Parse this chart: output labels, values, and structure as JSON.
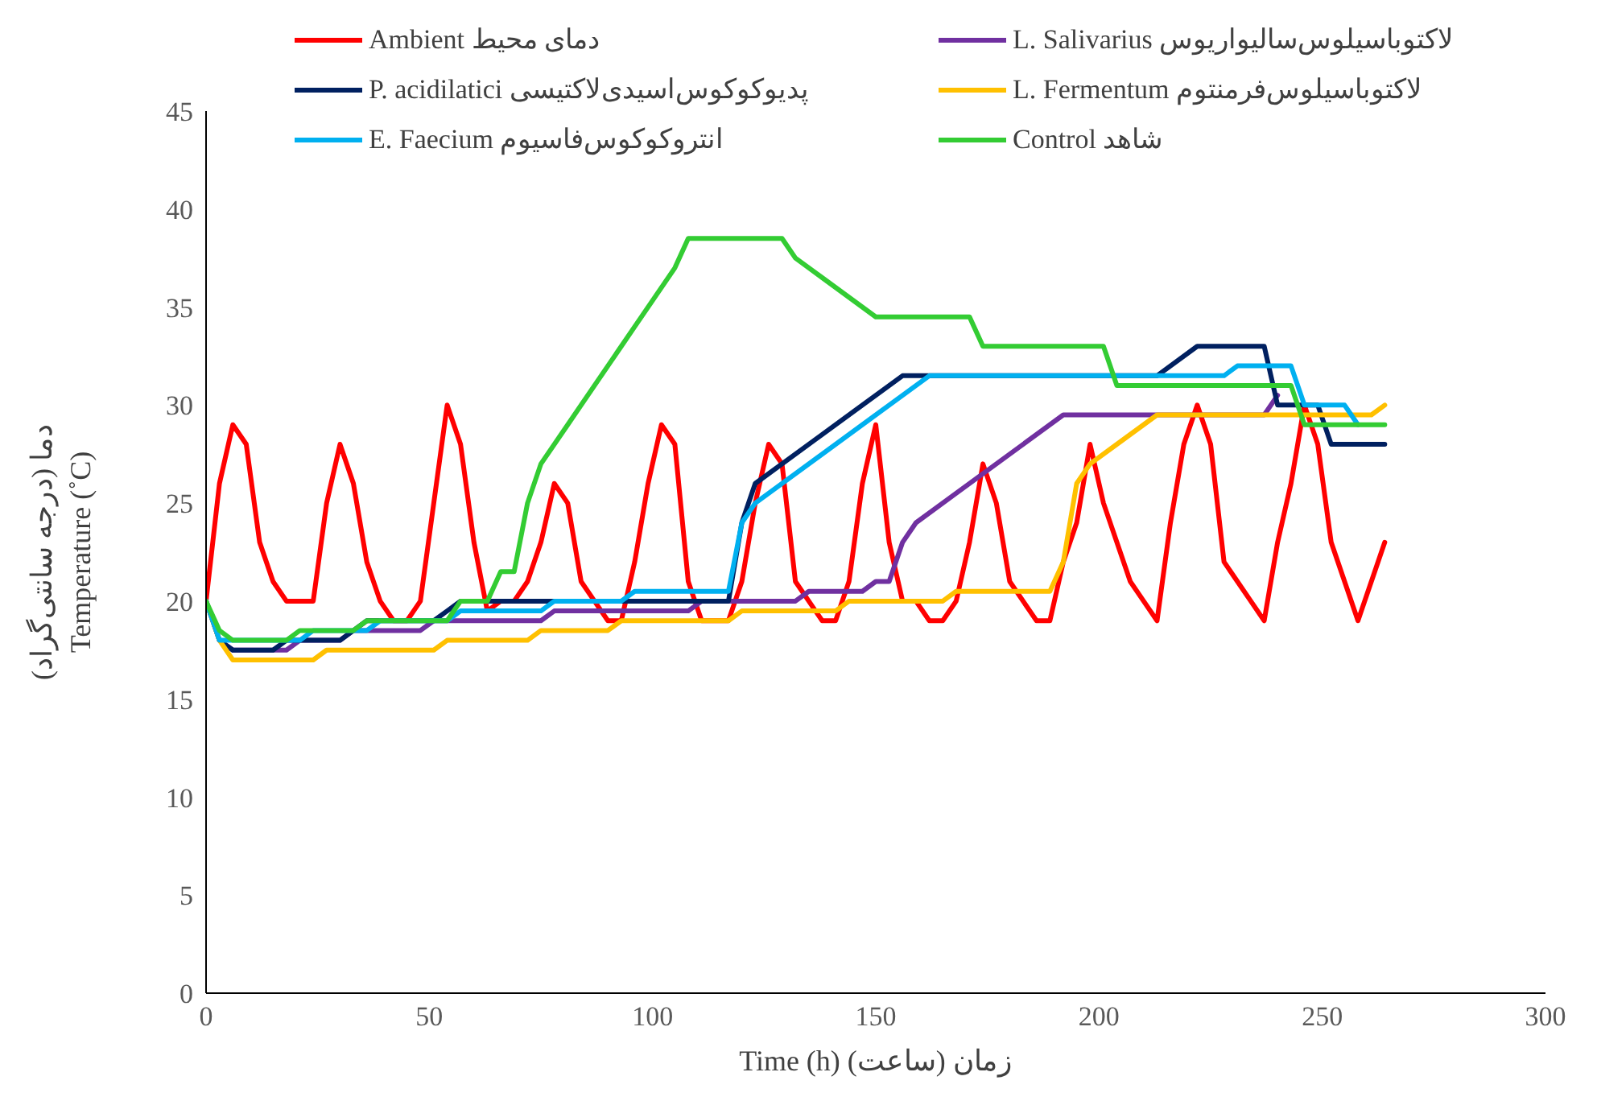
{
  "chart_data": {
    "type": "line",
    "xlabel": "Time (h) زمان (ساعت)",
    "ylabel": "دما (درجه سانتی‌گراد)\nTemperature (˚C)",
    "xlim": [
      0,
      300
    ],
    "xticks": [
      0,
      50,
      100,
      150,
      200,
      250,
      300
    ],
    "ylim": [
      0,
      45
    ],
    "yticks": [
      0,
      5,
      10,
      15,
      20,
      25,
      30,
      35,
      40,
      45
    ],
    "legend": "top",
    "marker": "none",
    "line_style": "solid",
    "series": [
      {
        "name": "Ambient دمای محیط",
        "color": "#ff0000",
        "x": [
          0,
          3,
          6,
          9,
          12,
          15,
          18,
          21,
          24,
          27,
          30,
          33,
          36,
          39,
          42,
          45,
          48,
          51,
          54,
          57,
          60,
          63,
          66,
          69,
          72,
          75,
          78,
          81,
          84,
          87,
          90,
          93,
          96,
          99,
          102,
          105,
          108,
          111,
          114,
          117,
          120,
          123,
          126,
          129,
          132,
          135,
          138,
          141,
          144,
          147,
          150,
          153,
          156,
          159,
          162,
          165,
          168,
          171,
          174,
          177,
          180,
          183,
          186,
          189,
          192,
          195,
          198,
          201,
          204,
          207,
          210,
          213,
          216,
          219,
          222,
          225,
          228,
          231,
          234,
          237,
          240,
          243,
          246,
          249,
          252,
          255,
          258,
          261,
          264
        ],
        "values": [
          20,
          26,
          29,
          28,
          23,
          21,
          20,
          20,
          20,
          25,
          28,
          26,
          22,
          20,
          19,
          19,
          20,
          25,
          30,
          28,
          23,
          19.5,
          20,
          20,
          21,
          23,
          26,
          25,
          21,
          20,
          19,
          19,
          22,
          26,
          29,
          28,
          21,
          19,
          19,
          19,
          21,
          25,
          28,
          27,
          21,
          20,
          19,
          19,
          21,
          26,
          29,
          23,
          20,
          20,
          19,
          19,
          20,
          23,
          27,
          25,
          21,
          20,
          19,
          19,
          22,
          24,
          28,
          25,
          23,
          21,
          20,
          19,
          24,
          28,
          30,
          28,
          22,
          21,
          20,
          19,
          23,
          26,
          30,
          28,
          23,
          21,
          19,
          21,
          23
        ]
      },
      {
        "name": "L. Salivarius لاکتوباسیلوس‌سالیواریوس",
        "color": "#7030a0",
        "x": [
          0,
          3,
          6,
          18,
          21,
          30,
          33,
          48,
          51,
          75,
          78,
          108,
          111,
          132,
          135,
          147,
          150,
          153,
          156,
          159,
          168,
          192,
          237,
          240
        ],
        "values": [
          20,
          18,
          17.5,
          17.5,
          18,
          18,
          18.5,
          18.5,
          19,
          19,
          19.5,
          19.5,
          20,
          20,
          20.5,
          20.5,
          21,
          21,
          23,
          24,
          25.5,
          29.5,
          29.5,
          30.5
        ]
      },
      {
        "name": "P. acidilatici پدیوکوکوس‌اسیدی‌لاکتیسی",
        "color": "#002060",
        "x": [
          0,
          3,
          6,
          15,
          18,
          30,
          33,
          36,
          51,
          54,
          57,
          117,
          120,
          123,
          138,
          156,
          213,
          222,
          237,
          240,
          249,
          252,
          264
        ],
        "values": [
          20,
          18,
          17.5,
          17.5,
          18,
          18,
          18.5,
          19,
          19,
          19.5,
          20,
          20,
          24,
          26,
          28.5,
          31.5,
          31.5,
          33,
          33,
          30,
          30,
          28,
          28
        ]
      },
      {
        "name": "L. Fermentum لاکتوباسیلوس‌فرمنتوم",
        "color": "#ffc000",
        "x": [
          0,
          3,
          6,
          24,
          27,
          51,
          54,
          72,
          75,
          90,
          93,
          117,
          120,
          141,
          144,
          165,
          168,
          189,
          192,
          195,
          198,
          204,
          213,
          261,
          264
        ],
        "values": [
          20,
          18,
          17,
          17,
          17.5,
          17.5,
          18,
          18,
          18.5,
          18.5,
          19,
          19,
          19.5,
          19.5,
          20,
          20,
          20.5,
          20.5,
          22,
          26,
          27,
          28,
          29.5,
          29.5,
          30
        ]
      },
      {
        "name": "E. Faecium انتروکوکوس‌فاسیوم",
        "color": "#00b0f0",
        "x": [
          0,
          3,
          21,
          24,
          36,
          39,
          54,
          57,
          75,
          78,
          93,
          96,
          117,
          120,
          123,
          153,
          162,
          228,
          231,
          243,
          246,
          255,
          258
        ],
        "values": [
          20,
          18,
          18,
          18.5,
          18.5,
          19,
          19,
          19.5,
          19.5,
          20,
          20,
          20.5,
          20.5,
          24,
          25,
          30,
          31.5,
          31.5,
          32,
          32,
          30,
          30,
          29
        ]
      },
      {
        "name": "Control شاهد",
        "color": "#33cc33",
        "x": [
          0,
          3,
          6,
          18,
          21,
          33,
          36,
          54,
          57,
          63,
          66,
          69,
          72,
          75,
          81,
          93,
          96,
          105,
          108,
          129,
          132,
          138,
          150,
          171,
          174,
          201,
          204,
          243,
          246,
          264
        ],
        "values": [
          20,
          18.5,
          18,
          18,
          18.5,
          18.5,
          19,
          19,
          20,
          20,
          21.5,
          21.5,
          25,
          27,
          29,
          33,
          34,
          37,
          38.5,
          38.5,
          37.5,
          36.5,
          34.5,
          34.5,
          33,
          33,
          31,
          31,
          29,
          29
        ]
      }
    ]
  }
}
